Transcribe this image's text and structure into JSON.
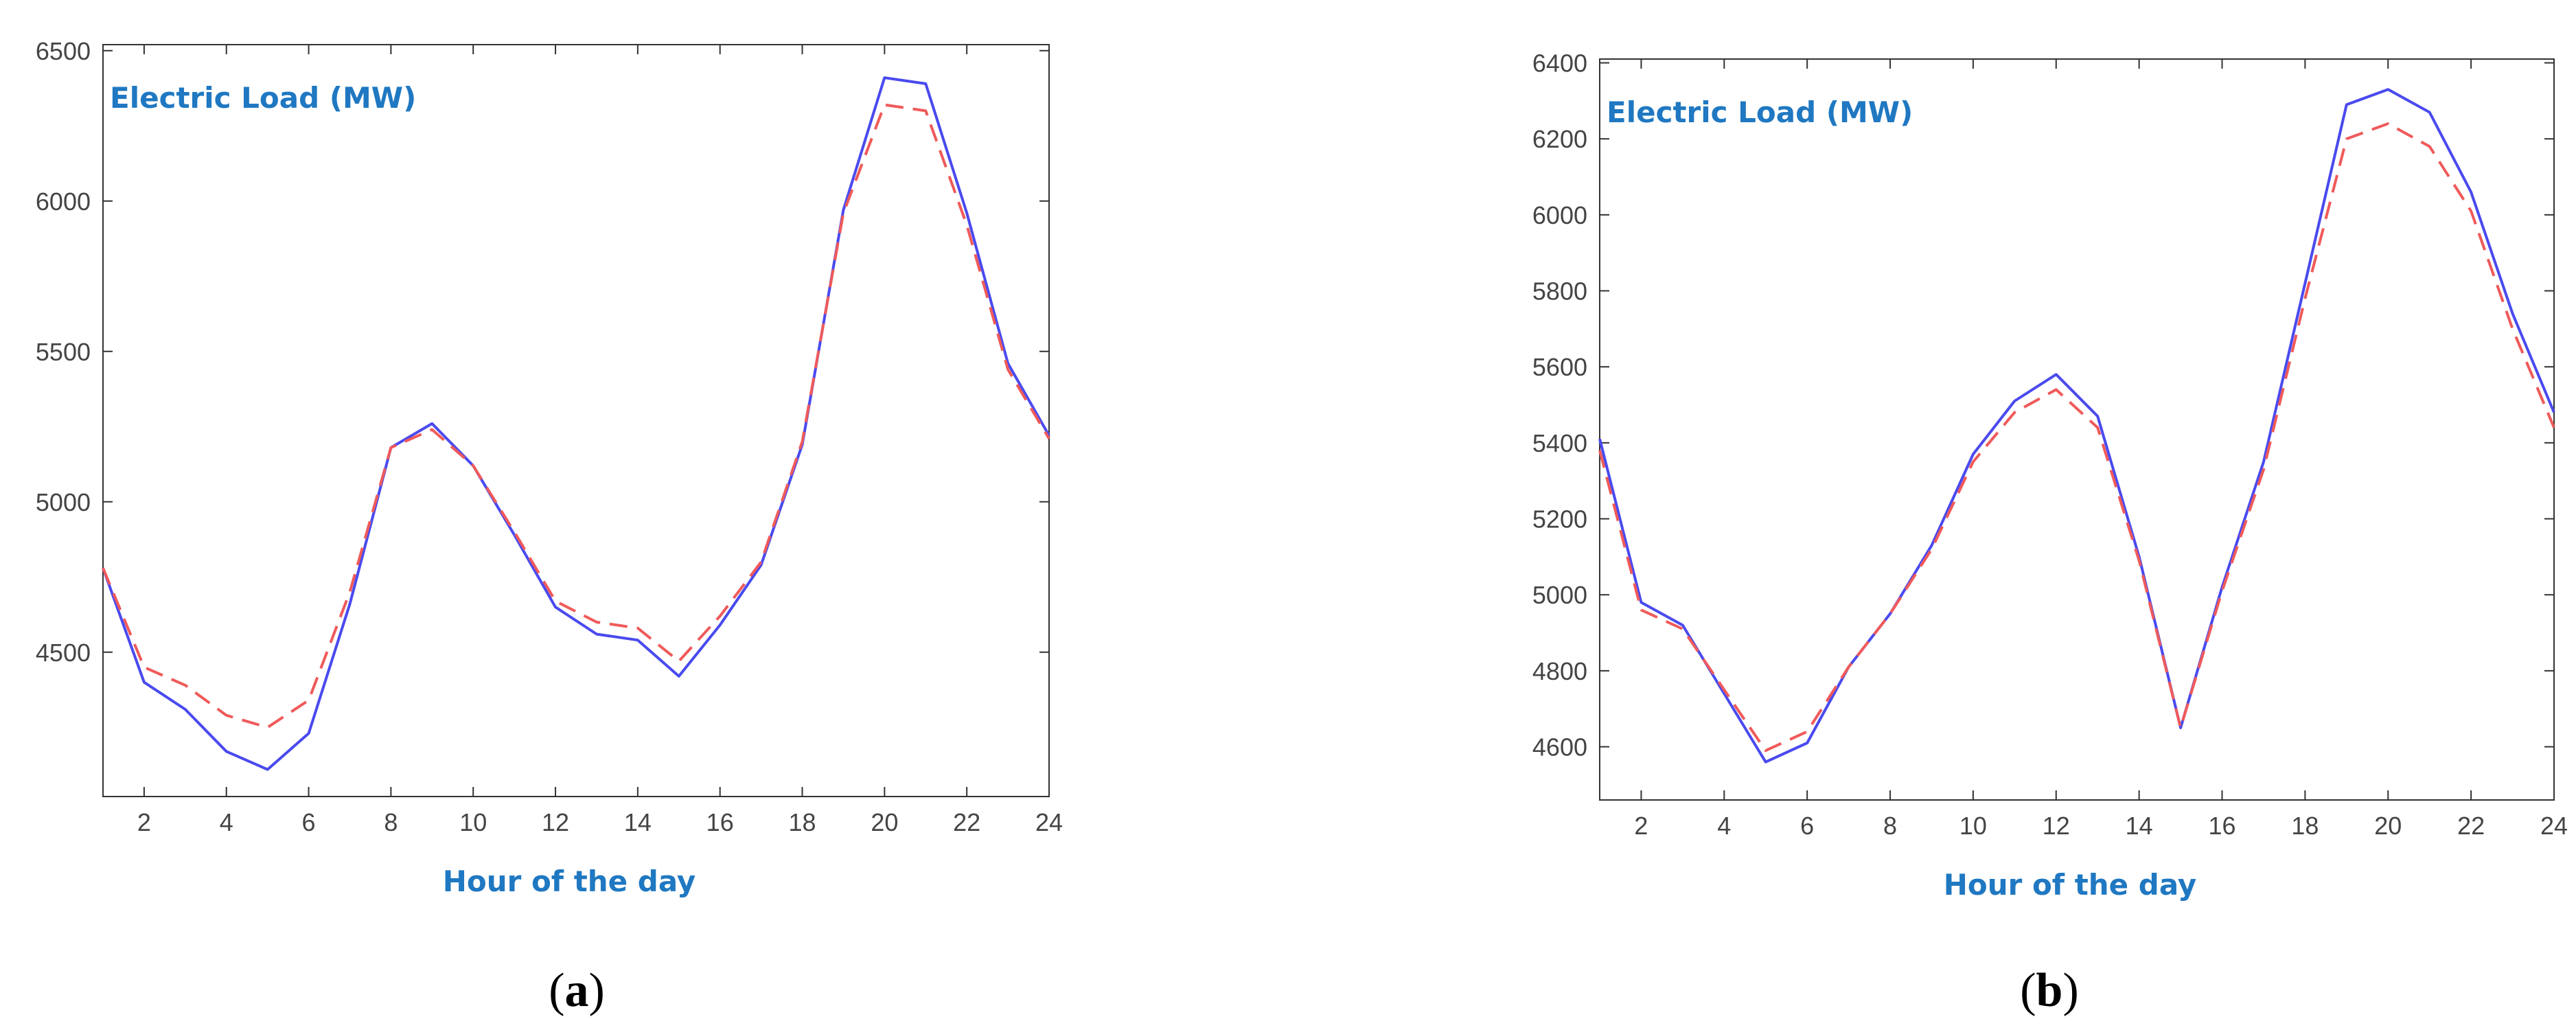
{
  "colors": {
    "actual": "#4a4aef",
    "forecast": "#f05a5a",
    "label": "#1f78c1",
    "axis": "#333333"
  },
  "chart_data": [
    {
      "type": "line",
      "panel_label": {
        "open": "(",
        "letter": "a",
        "close": ")"
      },
      "ylabel": "Electric Load (MW)",
      "xlabel": "Hour of the day",
      "xlim": [
        1,
        24
      ],
      "ylim": [
        4020,
        6520
      ],
      "xticks": [
        2,
        4,
        6,
        8,
        10,
        12,
        14,
        16,
        18,
        20,
        22,
        24
      ],
      "yticks": [
        4500,
        5000,
        5500,
        6000,
        6500
      ],
      "x": [
        1,
        2,
        3,
        4,
        5,
        6,
        7,
        8,
        9,
        10,
        11,
        12,
        13,
        14,
        15,
        16,
        17,
        18,
        19,
        20,
        21,
        22,
        23,
        24
      ],
      "series": [
        {
          "style": "solid",
          "values": [
            4780,
            4400,
            4310,
            4170,
            4110,
            4230,
            4660,
            5180,
            5260,
            5120,
            4890,
            4650,
            4560,
            4540,
            4420,
            4590,
            4790,
            5190,
            5970,
            6410,
            6390,
            5960,
            5460,
            5220
          ]
        },
        {
          "style": "dashed",
          "values": [
            4780,
            4450,
            4390,
            4290,
            4250,
            4340,
            4700,
            5180,
            5240,
            5120,
            4900,
            4670,
            4600,
            4580,
            4470,
            4620,
            4800,
            5200,
            5960,
            6320,
            6300,
            5920,
            5440,
            5210
          ]
        }
      ]
    },
    {
      "type": "line",
      "panel_label": {
        "open": "(",
        "letter": "b",
        "close": ")"
      },
      "ylabel": "Electric Load (MW)",
      "xlabel": "Hour of the day",
      "xlim": [
        1,
        24
      ],
      "ylim": [
        4460,
        6410
      ],
      "xticks": [
        2,
        4,
        6,
        8,
        10,
        12,
        14,
        16,
        18,
        20,
        22,
        24
      ],
      "yticks": [
        4600,
        4800,
        5000,
        5200,
        5400,
        5600,
        5800,
        6000,
        6200,
        6400
      ],
      "x": [
        1,
        2,
        3,
        4,
        5,
        6,
        7,
        8,
        9,
        10,
        11,
        12,
        13,
        14,
        15,
        16,
        17,
        18,
        19,
        20,
        21,
        22,
        23,
        24
      ],
      "series": [
        {
          "style": "solid",
          "values": [
            5410,
            4980,
            4920,
            4740,
            4560,
            4610,
            4810,
            4950,
            5130,
            5370,
            5510,
            5580,
            5470,
            5100,
            4650,
            5020,
            5350,
            5820,
            6290,
            6330,
            6270,
            6060,
            5740,
            5480
          ]
        },
        {
          "style": "dashed",
          "values": [
            5380,
            4960,
            4910,
            4750,
            4590,
            4640,
            4810,
            4950,
            5120,
            5350,
            5480,
            5540,
            5440,
            5090,
            4650,
            5010,
            5330,
            5780,
            6200,
            6240,
            6180,
            6010,
            5700,
            5440
          ]
        }
      ]
    }
  ]
}
